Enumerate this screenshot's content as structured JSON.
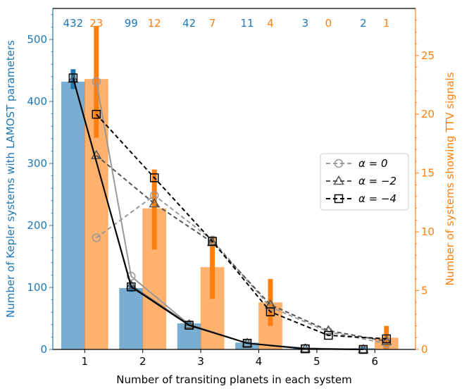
{
  "chart_data": {
    "type": "bar",
    "xlabel": "Number of transiting planets in each system",
    "ylabel_left": "Number of Kepler systems with LAMOST parameters",
    "ylabel_right": "Number of systems showing TTV signals",
    "categories": [
      1,
      2,
      3,
      4,
      5,
      6
    ],
    "xlim": [
      0.45,
      6.7
    ],
    "ylim_left": [
      0,
      550
    ],
    "ylim_right": [
      0,
      29
    ],
    "yticks_left": [
      0,
      100,
      200,
      300,
      400,
      500
    ],
    "yticks_right": [
      0,
      5,
      10,
      15,
      20,
      25
    ],
    "colors": {
      "left": "#1f77b4",
      "right": "#ff7f0e"
    },
    "bar_series": [
      {
        "name": "Kepler systems with LAMOST parameters",
        "axis": "left",
        "values": [
          432,
          99,
          42,
          11,
          3,
          2
        ],
        "errors": [
          [
            420,
            452
          ],
          [
            93,
            104
          ],
          [
            38,
            44
          ],
          [
            9,
            13
          ],
          [
            1,
            4
          ],
          [
            0,
            4
          ]
        ],
        "count_labels": [
          "432",
          "99",
          "42",
          "11",
          "3",
          "2"
        ]
      },
      {
        "name": "Systems showing TTV signals",
        "axis": "right",
        "values": [
          23,
          12,
          7,
          4,
          0,
          1
        ],
        "errors": [
          [
            18,
            27.5
          ],
          [
            8.5,
            15.3
          ],
          [
            4.3,
            9.5
          ],
          [
            2,
            6
          ],
          [
            0,
            0
          ],
          [
            0,
            2
          ]
        ],
        "count_labels": [
          "23",
          "12",
          "7",
          "4",
          "0",
          "1"
        ]
      }
    ],
    "model_series": [
      {
        "name": "α = 0",
        "legend": "α = 0",
        "marker": "circle",
        "color": "#999999",
        "left_x": [
          1.2,
          1.8,
          2.8,
          3.8,
          4.8,
          5.8
        ],
        "left_y": [
          432,
          118,
          40,
          10,
          2,
          0
        ],
        "right_x": [
          1.2,
          2.2,
          3.2,
          4.2,
          5.2,
          6.2
        ],
        "right_y": [
          9.5,
          13.1,
          9.3,
          3.6,
          1.5,
          0.5
        ]
      },
      {
        "name": "α = −2",
        "legend": "α = −2",
        "marker": "triangle",
        "color": "#555555",
        "left_x": [
          0.8,
          1.8,
          2.8,
          3.8,
          4.8,
          5.8
        ],
        "left_y": [
          436,
          103,
          40,
          10,
          1,
          0
        ],
        "right_x": [
          1.2,
          2.2,
          3.2,
          4.2,
          5.2,
          6.2
        ],
        "right_y": [
          16.5,
          12.4,
          9.1,
          3.8,
          1.6,
          0.7
        ]
      },
      {
        "name": "α = −4",
        "legend": "α = −4",
        "marker": "square",
        "color": "#000000",
        "left_x": [
          0.8,
          1.8,
          2.8,
          3.8,
          4.8,
          5.8
        ],
        "left_y": [
          438,
          101,
          39,
          10,
          1,
          0
        ],
        "right_x": [
          1.2,
          2.2,
          3.2,
          4.2,
          5.2,
          6.2
        ],
        "right_y": [
          20.0,
          14.6,
          9.2,
          3.2,
          1.2,
          0.9
        ]
      }
    ]
  }
}
